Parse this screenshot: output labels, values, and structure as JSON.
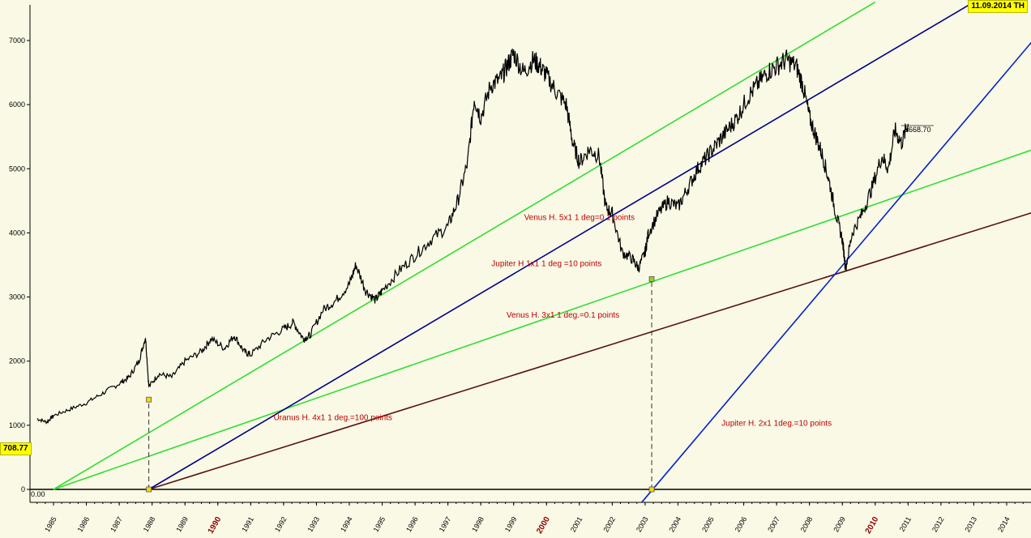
{
  "badges": {
    "date": "11.09.2014 TH",
    "price": "708.77",
    "zero": "0.00",
    "last": "5668.70"
  },
  "chart_data": {
    "type": "line",
    "title": "",
    "xlabel": "",
    "ylabel": "",
    "xlim": [
      1984.5,
      2014.8
    ],
    "ylim": [
      -200,
      7500
    ],
    "yticks": [
      0,
      1000,
      2000,
      3000,
      4000,
      5000,
      6000,
      7000
    ],
    "xticks": [
      {
        "label": "1985",
        "x": 1985,
        "major": false
      },
      {
        "label": "1986",
        "x": 1986,
        "major": false
      },
      {
        "label": "1987",
        "x": 1987,
        "major": false
      },
      {
        "label": "1988",
        "x": 1988,
        "major": false
      },
      {
        "label": "1989",
        "x": 1989,
        "major": false
      },
      {
        "label": "1990",
        "x": 1990,
        "major": true
      },
      {
        "label": "1991",
        "x": 1991,
        "major": false
      },
      {
        "label": "1992",
        "x": 1992,
        "major": false
      },
      {
        "label": "1993",
        "x": 1993,
        "major": false
      },
      {
        "label": "1994",
        "x": 1994,
        "major": false
      },
      {
        "label": "1995",
        "x": 1995,
        "major": false
      },
      {
        "label": "1996",
        "x": 1996,
        "major": false
      },
      {
        "label": "1997",
        "x": 1997,
        "major": false
      },
      {
        "label": "1998",
        "x": 1998,
        "major": false
      },
      {
        "label": "1999",
        "x": 1999,
        "major": false
      },
      {
        "label": "2000",
        "x": 2000,
        "major": true
      },
      {
        "label": "2001",
        "x": 2001,
        "major": false
      },
      {
        "label": "2002",
        "x": 2002,
        "major": false
      },
      {
        "label": "2003",
        "x": 2003,
        "major": false
      },
      {
        "label": "2004",
        "x": 2004,
        "major": false
      },
      {
        "label": "2005",
        "x": 2005,
        "major": false
      },
      {
        "label": "2006",
        "x": 2006,
        "major": false
      },
      {
        "label": "2007",
        "x": 2007,
        "major": false
      },
      {
        "label": "2008",
        "x": 2008,
        "major": false
      },
      {
        "label": "2009",
        "x": 2009,
        "major": false
      },
      {
        "label": "2010",
        "x": 2010,
        "major": true
      },
      {
        "label": "2011",
        "x": 2011,
        "major": false
      },
      {
        "label": "2012",
        "x": 2012,
        "major": false
      },
      {
        "label": "2013",
        "x": 2013,
        "major": false
      },
      {
        "label": "2014",
        "x": 2014,
        "major": false
      }
    ],
    "price_series": {
      "color": "#000000",
      "x": [
        1984.5,
        1984.8,
        1985.0,
        1985.5,
        1986.0,
        1986.5,
        1987.0,
        1987.3,
        1987.6,
        1987.8,
        1987.9,
        1988.2,
        1988.6,
        1989.0,
        1989.5,
        1989.8,
        1990.2,
        1990.5,
        1990.8,
        1991.0,
        1991.5,
        1992.0,
        1992.3,
        1992.6,
        1992.8,
        1993.2,
        1993.6,
        1994.0,
        1994.2,
        1994.5,
        1994.8,
        1995.0,
        1995.5,
        1996.0,
        1996.5,
        1997.0,
        1997.3,
        1997.6,
        1997.8,
        1998.0,
        1998.3,
        1998.6,
        1998.8,
        1999.0,
        1999.3,
        1999.6,
        1999.8,
        2000.0,
        2000.3,
        2000.6,
        2000.8,
        2001.0,
        2001.3,
        2001.6,
        2001.8,
        2002.0,
        2002.3,
        2002.6,
        2002.8,
        2003.0,
        2003.1,
        2003.4,
        2003.7,
        2004.0,
        2004.3,
        2004.6,
        2004.9,
        2005.2,
        2005.5,
        2005.8,
        2006.1,
        2006.4,
        2006.7,
        2007.0,
        2007.3,
        2007.6,
        2007.8,
        2008.0,
        2008.2,
        2008.4,
        2008.6,
        2008.8,
        2009.0,
        2009.1,
        2009.3,
        2009.6,
        2009.9,
        2010.2,
        2010.4,
        2010.6,
        2010.8,
        2011.0
      ],
      "y": [
        1100,
        1050,
        1150,
        1250,
        1350,
        1500,
        1650,
        1750,
        2000,
        2380,
        1600,
        1800,
        1750,
        2000,
        2150,
        2350,
        2200,
        2400,
        2150,
        2100,
        2350,
        2500,
        2600,
        2350,
        2400,
        2800,
        2950,
        3200,
        3500,
        3100,
        2950,
        3100,
        3400,
        3650,
        3900,
        4100,
        4500,
        5100,
        6100,
        5800,
        6300,
        6400,
        6600,
        6800,
        6500,
        6700,
        6600,
        6450,
        6200,
        6000,
        5400,
        5100,
        5300,
        5200,
        4400,
        4300,
        3700,
        3600,
        3450,
        3700,
        4000,
        4300,
        4500,
        4400,
        4700,
        5000,
        5200,
        5400,
        5600,
        5800,
        6100,
        6300,
        6500,
        6600,
        6700,
        6600,
        6300,
        5800,
        5500,
        5200,
        4800,
        4300,
        3900,
        3450,
        4000,
        4300,
        4700,
        5200,
        5000,
        5600,
        5400,
        5700
      ]
    },
    "lines": [
      {
        "name": "Venus H. 5x1  1 deg=0.1 points",
        "color": "#33dd33",
        "x": [
          1985.0,
          2010.0
        ],
        "y": [
          0,
          7600
        ]
      },
      {
        "name": "Venus H. 3x1  1 deg.=0.1 points",
        "color": "#33dd33",
        "x": [
          1985.0,
          2014.8
        ],
        "y": [
          0,
          5300
        ]
      },
      {
        "name": "Jupiter H 1x1 1 deg =10 points",
        "color": "#00008b",
        "x": [
          1987.9,
          2013.0
        ],
        "y": [
          0,
          7600
        ]
      },
      {
        "name": "Uranus H.  4x1  1 deg.=100 points",
        "color": "#5a0f0f",
        "x": [
          1987.9,
          2014.8
        ],
        "y": [
          0,
          4320
        ]
      },
      {
        "name": "Jupiter H. 2x1  1deg.=10 points",
        "color": "#0022cc",
        "x": [
          2002.9,
          2014.8
        ],
        "y": [
          -200,
          7000
        ]
      }
    ],
    "markers": [
      {
        "x": 1987.9,
        "y": 1400,
        "color": "#ffd700"
      },
      {
        "x": 1987.9,
        "y": 0,
        "color": "#ffd700"
      },
      {
        "x": 2003.2,
        "y": 3280,
        "color": "#9acd32"
      },
      {
        "x": 2003.2,
        "y": 0,
        "color": "#ffd700"
      }
    ],
    "dashed_verticals": [
      {
        "x": 1987.9,
        "y0": 0,
        "y1": 1400
      },
      {
        "x": 2003.2,
        "y0": 0,
        "y1": 3280
      }
    ],
    "annotations": [
      {
        "text": "Venus H. 5x1  1 deg=0.1 points",
        "x": 2001.0,
        "y": 4200
      },
      {
        "text": "Jupiter H 1x1 1 deg =10 points",
        "x": 2000.0,
        "y": 3480
      },
      {
        "text": "Venus H. 3x1  1 deg.=0.1 points",
        "x": 2000.5,
        "y": 2680
      },
      {
        "text": "Uranus H.  4x1  1 deg.=100 points",
        "x": 1993.5,
        "y": 1080
      },
      {
        "text": "Jupiter H. 2x1  1deg.=10 points",
        "x": 2007.0,
        "y": 990
      }
    ]
  }
}
